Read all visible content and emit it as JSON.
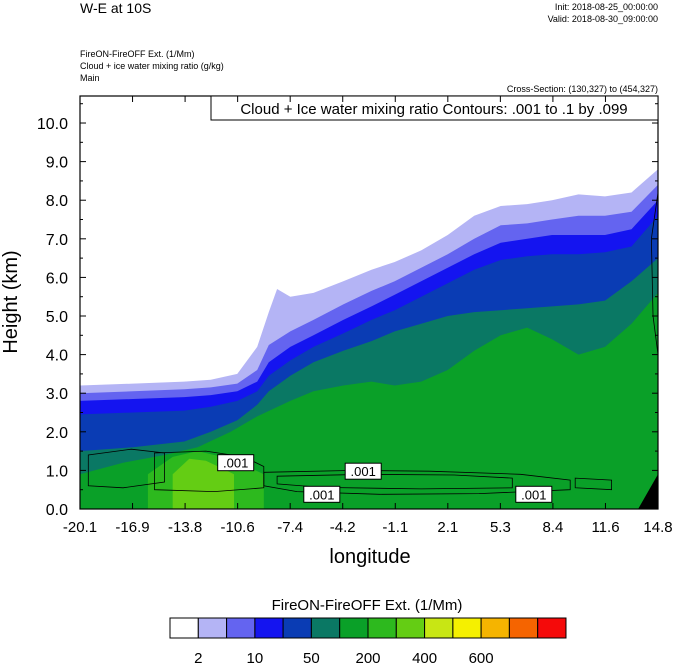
{
  "header": {
    "title": "W-E at 10S",
    "init": "Init: 2018-08-25_00:00:00",
    "valid": "Valid: 2018-08-30_09:00:00",
    "line1": "FireON-FireOFF Ext.   (1/Mm)",
    "line2": "Cloud + ice water mixing ratio   (g/kg)",
    "line3": "Main",
    "cross_section": "Cross-Section: (130,327) to (454,327)"
  },
  "chart_data": {
    "type": "heatmap",
    "title": "Cloud + Ice water mixing ratio Contours: .001 to .1 by .099",
    "xlabel": "longitude",
    "ylabel": "Height (km)",
    "xlim": [
      -20.1,
      14.8
    ],
    "ylim": [
      0,
      10.7
    ],
    "x_ticks": [
      "-20.1",
      "-16.9",
      "-13.8",
      "-10.6",
      "-7.4",
      "-4.2",
      "-1.1",
      "2.1",
      "5.3",
      "8.4",
      "11.6",
      "14.8"
    ],
    "y_ticks": [
      "0.0",
      "1.0",
      "2.0",
      "3.0",
      "4.0",
      "5.0",
      "6.0",
      "7.0",
      "8.0",
      "9.0",
      "10.0"
    ],
    "contour_labels": [
      {
        "text": ".001",
        "x": -10.7,
        "y": 1.2
      },
      {
        "text": ".001",
        "x": -3.0,
        "y": 0.98
      },
      {
        "text": ".001",
        "x": -5.5,
        "y": 0.38
      },
      {
        "text": ".001",
        "x": 7.3,
        "y": 0.38
      }
    ],
    "colorbar": {
      "title": "FireON-FireOFF Ext.  (1/Mm)",
      "colors": [
        "#ffffff",
        "#b4b4f5",
        "#6464f0",
        "#1414f0",
        "#0a3cb4",
        "#0a7864",
        "#0aa028",
        "#2db91e",
        "#64cd14",
        "#c8e614",
        "#f5f000",
        "#f5b400",
        "#f56400",
        "#f50a0a"
      ],
      "labels": [
        "2",
        "10",
        "50",
        "200",
        "400",
        "600"
      ]
    },
    "layers": [
      {
        "level": 1,
        "color": "#b4b4f5",
        "top": [
          [
            -20.1,
            3.2
          ],
          [
            -16.9,
            3.25
          ],
          [
            -13.8,
            3.3
          ],
          [
            -12.2,
            3.35
          ],
          [
            -10.6,
            3.5
          ],
          [
            -9.4,
            4.2
          ],
          [
            -8.7,
            5.1
          ],
          [
            -8.2,
            5.7
          ],
          [
            -7.4,
            5.5
          ],
          [
            -6.0,
            5.6
          ],
          [
            -4.2,
            5.9
          ],
          [
            -2.5,
            6.2
          ],
          [
            -1.1,
            6.4
          ],
          [
            0.5,
            6.7
          ],
          [
            2.1,
            7.1
          ],
          [
            3.7,
            7.6
          ],
          [
            5.3,
            7.85
          ],
          [
            6.9,
            7.9
          ],
          [
            8.4,
            8.0
          ],
          [
            10.0,
            8.15
          ],
          [
            11.6,
            8.1
          ],
          [
            13.2,
            8.2
          ],
          [
            14.8,
            8.8
          ]
        ]
      },
      {
        "level": 2,
        "color": "#6464f0",
        "top": [
          [
            -20.1,
            3.0
          ],
          [
            -16.9,
            3.05
          ],
          [
            -13.8,
            3.1
          ],
          [
            -12.2,
            3.15
          ],
          [
            -10.6,
            3.25
          ],
          [
            -9.4,
            3.6
          ],
          [
            -8.7,
            4.25
          ],
          [
            -7.4,
            4.6
          ],
          [
            -6.0,
            4.9
          ],
          [
            -4.2,
            5.3
          ],
          [
            -2.5,
            5.65
          ],
          [
            -1.1,
            5.9
          ],
          [
            0.5,
            6.25
          ],
          [
            2.1,
            6.6
          ],
          [
            3.7,
            7.0
          ],
          [
            5.3,
            7.35
          ],
          [
            6.9,
            7.4
          ],
          [
            8.4,
            7.5
          ],
          [
            10.0,
            7.6
          ],
          [
            11.6,
            7.6
          ],
          [
            13.2,
            7.7
          ],
          [
            14.8,
            8.4
          ]
        ]
      },
      {
        "level": 3,
        "color": "#1414f0",
        "top": [
          [
            -20.1,
            2.8
          ],
          [
            -16.9,
            2.85
          ],
          [
            -13.8,
            2.9
          ],
          [
            -12.2,
            2.95
          ],
          [
            -10.6,
            3.05
          ],
          [
            -9.4,
            3.3
          ],
          [
            -8.7,
            3.8
          ],
          [
            -7.4,
            4.2
          ],
          [
            -6.0,
            4.5
          ],
          [
            -4.2,
            4.9
          ],
          [
            -2.5,
            5.25
          ],
          [
            -1.1,
            5.55
          ],
          [
            0.5,
            5.9
          ],
          [
            2.1,
            6.25
          ],
          [
            3.7,
            6.6
          ],
          [
            5.3,
            6.9
          ],
          [
            6.9,
            7.0
          ],
          [
            8.4,
            7.1
          ],
          [
            10.0,
            7.1
          ],
          [
            11.6,
            7.1
          ],
          [
            13.2,
            7.25
          ],
          [
            14.8,
            8.0
          ]
        ]
      },
      {
        "level": 4,
        "color": "#0a3cb4",
        "top": [
          [
            -20.1,
            2.45
          ],
          [
            -16.9,
            2.5
          ],
          [
            -13.8,
            2.55
          ],
          [
            -12.2,
            2.65
          ],
          [
            -10.6,
            2.8
          ],
          [
            -9.4,
            3.05
          ],
          [
            -8.7,
            3.45
          ],
          [
            -7.4,
            3.85
          ],
          [
            -6.0,
            4.2
          ],
          [
            -4.2,
            4.55
          ],
          [
            -2.5,
            4.9
          ],
          [
            -1.1,
            5.15
          ],
          [
            0.5,
            5.5
          ],
          [
            2.1,
            5.85
          ],
          [
            3.7,
            6.2
          ],
          [
            5.3,
            6.45
          ],
          [
            6.9,
            6.55
          ],
          [
            8.4,
            6.6
          ],
          [
            10.0,
            6.6
          ],
          [
            11.6,
            6.65
          ],
          [
            13.2,
            6.8
          ],
          [
            14.8,
            7.6
          ]
        ]
      },
      {
        "level": 5,
        "color": "#0a7864",
        "top": [
          [
            -20.1,
            1.5
          ],
          [
            -16.9,
            1.6
          ],
          [
            -13.8,
            1.75
          ],
          [
            -12.2,
            2.0
          ],
          [
            -10.6,
            2.3
          ],
          [
            -9.4,
            2.7
          ],
          [
            -8.7,
            3.05
          ],
          [
            -7.4,
            3.45
          ],
          [
            -6.0,
            3.8
          ],
          [
            -4.2,
            4.1
          ],
          [
            -2.5,
            4.35
          ],
          [
            -1.1,
            4.6
          ],
          [
            0.5,
            4.8
          ],
          [
            2.1,
            5.0
          ],
          [
            3.7,
            5.1
          ],
          [
            5.3,
            5.15
          ],
          [
            6.9,
            5.2
          ],
          [
            8.4,
            5.25
          ],
          [
            10.0,
            5.3
          ],
          [
            11.6,
            5.4
          ],
          [
            13.2,
            5.9
          ],
          [
            14.8,
            6.5
          ]
        ]
      },
      {
        "level": 6,
        "color": "#0aa028",
        "top": [
          [
            -20.1,
            0.9
          ],
          [
            -17.5,
            1.2
          ],
          [
            -15.0,
            1.4
          ],
          [
            -13.0,
            1.6
          ],
          [
            -11.0,
            2.0
          ],
          [
            -9.4,
            2.4
          ],
          [
            -7.4,
            2.8
          ],
          [
            -6.0,
            3.05
          ],
          [
            -4.2,
            3.2
          ],
          [
            -2.5,
            3.3
          ],
          [
            -1.1,
            3.2
          ],
          [
            0.5,
            3.3
          ],
          [
            2.1,
            3.6
          ],
          [
            3.7,
            4.1
          ],
          [
            5.3,
            4.5
          ],
          [
            6.9,
            4.7
          ],
          [
            8.4,
            4.4
          ],
          [
            10.0,
            4.0
          ],
          [
            11.6,
            4.2
          ],
          [
            13.2,
            4.8
          ],
          [
            14.8,
            5.6
          ]
        ]
      },
      {
        "level": 7,
        "color": "#2db91e",
        "top": [
          [
            -16.0,
            0.9
          ],
          [
            -14.5,
            1.35
          ],
          [
            -13.0,
            1.5
          ],
          [
            -11.5,
            1.35
          ],
          [
            -10.0,
            1.1
          ],
          [
            -9.0,
            0.9
          ]
        ]
      },
      {
        "level": 8,
        "color": "#64cd14",
        "top": [
          [
            -14.5,
            0.9
          ],
          [
            -13.5,
            1.3
          ],
          [
            -12.5,
            1.25
          ],
          [
            -11.5,
            1.05
          ],
          [
            -10.8,
            0.9
          ]
        ]
      }
    ]
  }
}
